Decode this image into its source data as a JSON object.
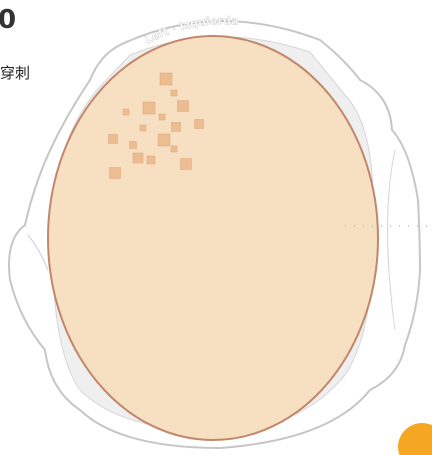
{
  "header": {
    "count": "0",
    "label": "穿刺"
  },
  "head_label": "Left · Izquierda"
}
